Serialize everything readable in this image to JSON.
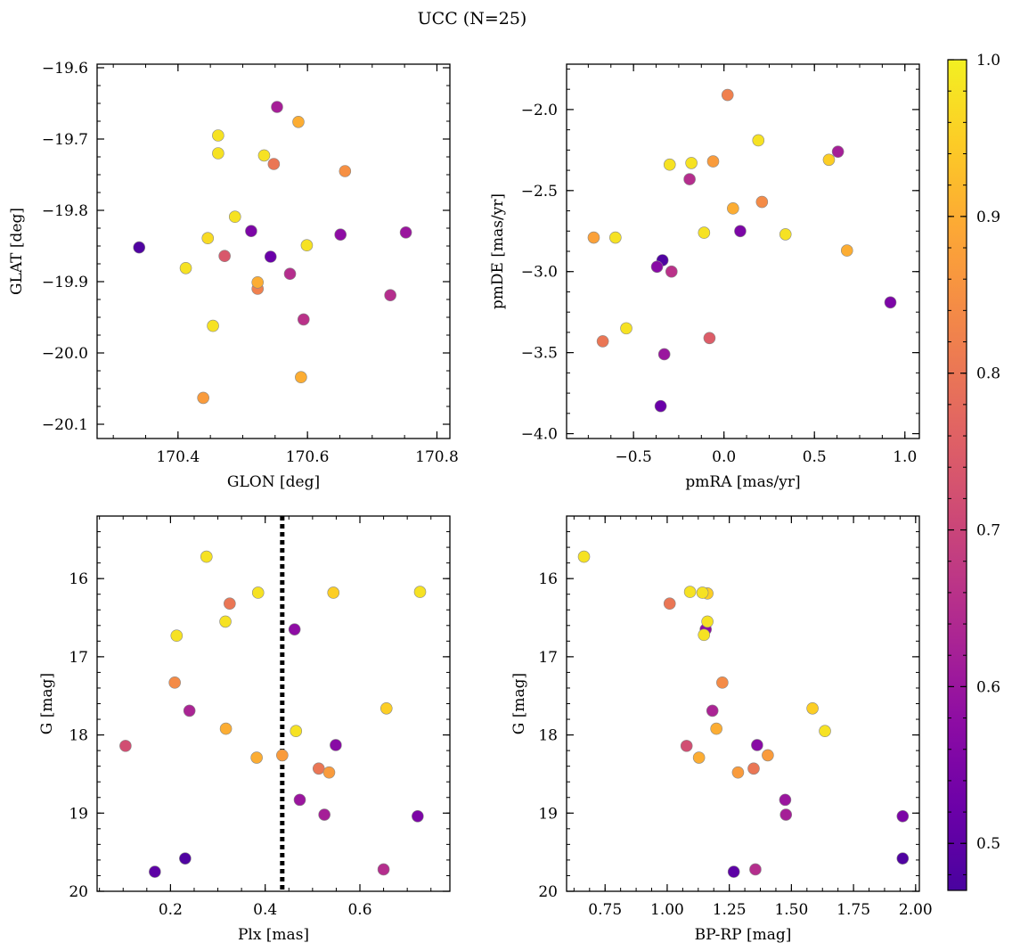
{
  "title": "UCC (N=25)",
  "colorbar": {
    "range": [
      0.47,
      1.0
    ],
    "ticks": [
      0.5,
      0.6,
      0.7,
      0.8,
      0.9,
      1.0
    ],
    "tick_labels": [
      "0.5",
      "0.6",
      "0.7",
      "0.8",
      "0.9",
      "1.0"
    ],
    "colormap": "plasma"
  },
  "colors": {
    "dotted_line": "#000000",
    "marker_edge": "#888888"
  },
  "chart_data": [
    {
      "type": "scatter",
      "name": "glon-glat",
      "xlabel": "GLON [deg]",
      "ylabel": "GLAT [deg]",
      "xlim": [
        170.275,
        170.82
      ],
      "ylim": [
        -20.12,
        -19.595
      ],
      "invert_y": false,
      "x_ticks": [
        170.4,
        170.6,
        170.8
      ],
      "x_tick_labels": [
        "170.4",
        "170.6",
        "170.8"
      ],
      "y_ticks": [
        -20.1,
        -20.0,
        -19.9,
        -19.8,
        -19.7,
        -19.6
      ],
      "y_tick_labels": [
        "−20.1",
        "−20.0",
        "−19.9",
        "−19.8",
        "−19.7",
        "−19.6"
      ],
      "points": [
        {
          "x": 170.34,
          "y": -19.852,
          "c": 0.48
        },
        {
          "x": 170.412,
          "y": -19.881,
          "c": 0.98
        },
        {
          "x": 170.446,
          "y": -19.839,
          "c": 0.97
        },
        {
          "x": 170.454,
          "y": -19.962,
          "c": 0.98
        },
        {
          "x": 170.462,
          "y": -19.695,
          "c": 0.98
        },
        {
          "x": 170.462,
          "y": -19.72,
          "c": 0.98
        },
        {
          "x": 170.472,
          "y": -19.864,
          "c": 0.74
        },
        {
          "x": 170.488,
          "y": -19.809,
          "c": 0.98
        },
        {
          "x": 170.439,
          "y": -20.063,
          "c": 0.87
        },
        {
          "x": 170.513,
          "y": -19.829,
          "c": 0.55
        },
        {
          "x": 170.523,
          "y": -19.901,
          "c": 0.9
        },
        {
          "x": 170.523,
          "y": -19.91,
          "c": 0.82
        },
        {
          "x": 170.533,
          "y": -19.723,
          "c": 0.98
        },
        {
          "x": 170.543,
          "y": -19.865,
          "c": 0.52
        },
        {
          "x": 170.548,
          "y": -19.735,
          "c": 0.8
        },
        {
          "x": 170.553,
          "y": -19.655,
          "c": 0.62
        },
        {
          "x": 170.573,
          "y": -19.889,
          "c": 0.65
        },
        {
          "x": 170.586,
          "y": -19.676,
          "c": 0.9
        },
        {
          "x": 170.59,
          "y": -20.034,
          "c": 0.9
        },
        {
          "x": 170.594,
          "y": -19.953,
          "c": 0.66
        },
        {
          "x": 170.599,
          "y": -19.849,
          "c": 0.98
        },
        {
          "x": 170.651,
          "y": -19.834,
          "c": 0.58
        },
        {
          "x": 170.658,
          "y": -19.745,
          "c": 0.85
        },
        {
          "x": 170.728,
          "y": -19.919,
          "c": 0.65
        },
        {
          "x": 170.752,
          "y": -19.831,
          "c": 0.6
        }
      ]
    },
    {
      "type": "scatter",
      "name": "pmra-pmde",
      "xlabel": "pmRA [mas/yr]",
      "ylabel": "pmDE [mas/yr]",
      "xlim": [
        -0.87,
        1.08
      ],
      "ylim": [
        -4.03,
        -1.72
      ],
      "invert_y": false,
      "x_ticks": [
        -0.5,
        0.0,
        0.5,
        1.0
      ],
      "x_tick_labels": [
        "−0.5",
        "0.0",
        "0.5",
        "1.0"
      ],
      "y_ticks": [
        -4.0,
        -3.5,
        -3.0,
        -2.5,
        -2.0
      ],
      "y_tick_labels": [
        "−4.0",
        "−3.5",
        "−3.0",
        "−2.5",
        "−2.0"
      ],
      "points": [
        {
          "x": 0.02,
          "y": -1.91,
          "c": 0.82
        },
        {
          "x": 0.19,
          "y": -2.19,
          "c": 0.98
        },
        {
          "x": -0.3,
          "y": -2.34,
          "c": 0.98
        },
        {
          "x": -0.18,
          "y": -2.33,
          "c": 0.98
        },
        {
          "x": -0.06,
          "y": -2.32,
          "c": 0.87
        },
        {
          "x": 0.58,
          "y": -2.31,
          "c": 0.95
        },
        {
          "x": 0.63,
          "y": -2.26,
          "c": 0.62
        },
        {
          "x": -0.19,
          "y": -2.43,
          "c": 0.65
        },
        {
          "x": 0.21,
          "y": -2.57,
          "c": 0.84
        },
        {
          "x": 0.05,
          "y": -2.61,
          "c": 0.9
        },
        {
          "x": -0.72,
          "y": -2.79,
          "c": 0.88
        },
        {
          "x": -0.6,
          "y": -2.79,
          "c": 0.98
        },
        {
          "x": -0.11,
          "y": -2.76,
          "c": 0.98
        },
        {
          "x": 0.09,
          "y": -2.75,
          "c": 0.55
        },
        {
          "x": 0.34,
          "y": -2.77,
          "c": 0.98
        },
        {
          "x": 0.68,
          "y": -2.87,
          "c": 0.9
        },
        {
          "x": -0.34,
          "y": -2.93,
          "c": 0.48
        },
        {
          "x": -0.37,
          "y": -2.97,
          "c": 0.57
        },
        {
          "x": -0.29,
          "y": -3.0,
          "c": 0.66
        },
        {
          "x": 0.92,
          "y": -3.19,
          "c": 0.55
        },
        {
          "x": -0.54,
          "y": -3.35,
          "c": 0.98
        },
        {
          "x": -0.67,
          "y": -3.43,
          "c": 0.8
        },
        {
          "x": -0.08,
          "y": -3.41,
          "c": 0.75
        },
        {
          "x": -0.33,
          "y": -3.51,
          "c": 0.6
        },
        {
          "x": -0.35,
          "y": -3.83,
          "c": 0.52
        }
      ]
    },
    {
      "type": "scatter",
      "name": "plx-g",
      "xlabel": "Plx [mas]",
      "ylabel": "G [mag]",
      "xlim": [
        0.045,
        0.79
      ],
      "ylim": [
        15.2,
        20.0
      ],
      "invert_y": true,
      "vline": {
        "x": 0.436,
        "style": "dotted"
      },
      "x_ticks": [
        0.2,
        0.4,
        0.6
      ],
      "x_tick_labels": [
        "0.2",
        "0.4",
        "0.6"
      ],
      "y_ticks": [
        16,
        17,
        18,
        19,
        20
      ],
      "y_tick_labels": [
        "16",
        "17",
        "18",
        "19",
        "20"
      ],
      "points": [
        {
          "x": 0.276,
          "y": 15.72,
          "c": 0.98
        },
        {
          "x": 0.385,
          "y": 16.18,
          "c": 0.98
        },
        {
          "x": 0.544,
          "y": 16.18,
          "c": 0.95
        },
        {
          "x": 0.727,
          "y": 16.17,
          "c": 0.98
        },
        {
          "x": 0.325,
          "y": 16.32,
          "c": 0.8
        },
        {
          "x": 0.316,
          "y": 16.55,
          "c": 0.98
        },
        {
          "x": 0.213,
          "y": 16.73,
          "c": 0.98
        },
        {
          "x": 0.462,
          "y": 16.65,
          "c": 0.58
        },
        {
          "x": 0.209,
          "y": 17.33,
          "c": 0.84
        },
        {
          "x": 0.24,
          "y": 17.69,
          "c": 0.63
        },
        {
          "x": 0.656,
          "y": 17.66,
          "c": 0.95
        },
        {
          "x": 0.317,
          "y": 17.92,
          "c": 0.9
        },
        {
          "x": 0.465,
          "y": 17.95,
          "c": 0.98
        },
        {
          "x": 0.105,
          "y": 18.14,
          "c": 0.72
        },
        {
          "x": 0.549,
          "y": 18.13,
          "c": 0.57
        },
        {
          "x": 0.382,
          "y": 18.29,
          "c": 0.9
        },
        {
          "x": 0.436,
          "y": 18.26,
          "c": 0.87
        },
        {
          "x": 0.513,
          "y": 18.43,
          "c": 0.8
        },
        {
          "x": 0.535,
          "y": 18.48,
          "c": 0.87
        },
        {
          "x": 0.473,
          "y": 18.83,
          "c": 0.6
        },
        {
          "x": 0.525,
          "y": 19.02,
          "c": 0.62
        },
        {
          "x": 0.722,
          "y": 19.04,
          "c": 0.55
        },
        {
          "x": 0.231,
          "y": 19.58,
          "c": 0.48
        },
        {
          "x": 0.167,
          "y": 19.75,
          "c": 0.5
        },
        {
          "x": 0.65,
          "y": 19.72,
          "c": 0.65
        }
      ]
    },
    {
      "type": "scatter",
      "name": "bprp-g",
      "xlabel": "BP-RP [mag]",
      "ylabel": "G [mag]",
      "xlim": [
        0.595,
        2.015
      ],
      "ylim": [
        15.2,
        20.0
      ],
      "invert_y": true,
      "x_ticks": [
        0.75,
        1.0,
        1.25,
        1.5,
        1.75,
        2.0
      ],
      "x_tick_labels": [
        "0.75",
        "1.00",
        "1.25",
        "1.50",
        "1.75",
        "2.00"
      ],
      "y_ticks": [
        16,
        17,
        18,
        19,
        20
      ],
      "y_tick_labels": [
        "16",
        "17",
        "18",
        "19",
        "20"
      ],
      "points": [
        {
          "x": 0.665,
          "y": 15.72,
          "c": 0.98
        },
        {
          "x": 1.092,
          "y": 16.17,
          "c": 0.98
        },
        {
          "x": 1.142,
          "y": 16.18,
          "c": 0.98
        },
        {
          "x": 1.162,
          "y": 16.19,
          "c": 0.95
        },
        {
          "x": 1.01,
          "y": 16.32,
          "c": 0.8
        },
        {
          "x": 1.162,
          "y": 16.55,
          "c": 0.98
        },
        {
          "x": 1.155,
          "y": 16.65,
          "c": 0.58
        },
        {
          "x": 1.148,
          "y": 16.72,
          "c": 0.98
        },
        {
          "x": 1.222,
          "y": 17.33,
          "c": 0.84
        },
        {
          "x": 1.182,
          "y": 17.69,
          "c": 0.63
        },
        {
          "x": 1.585,
          "y": 17.66,
          "c": 0.95
        },
        {
          "x": 1.198,
          "y": 17.92,
          "c": 0.9
        },
        {
          "x": 1.635,
          "y": 17.95,
          "c": 0.98
        },
        {
          "x": 1.078,
          "y": 18.14,
          "c": 0.72
        },
        {
          "x": 1.362,
          "y": 18.13,
          "c": 0.57
        },
        {
          "x": 1.128,
          "y": 18.29,
          "c": 0.9
        },
        {
          "x": 1.405,
          "y": 18.26,
          "c": 0.87
        },
        {
          "x": 1.348,
          "y": 18.43,
          "c": 0.8
        },
        {
          "x": 1.285,
          "y": 18.48,
          "c": 0.87
        },
        {
          "x": 1.475,
          "y": 18.83,
          "c": 0.6
        },
        {
          "x": 1.478,
          "y": 19.02,
          "c": 0.62
        },
        {
          "x": 1.948,
          "y": 19.04,
          "c": 0.55
        },
        {
          "x": 1.948,
          "y": 19.58,
          "c": 0.48
        },
        {
          "x": 1.268,
          "y": 19.75,
          "c": 0.5
        },
        {
          "x": 1.355,
          "y": 19.72,
          "c": 0.65
        }
      ]
    }
  ]
}
